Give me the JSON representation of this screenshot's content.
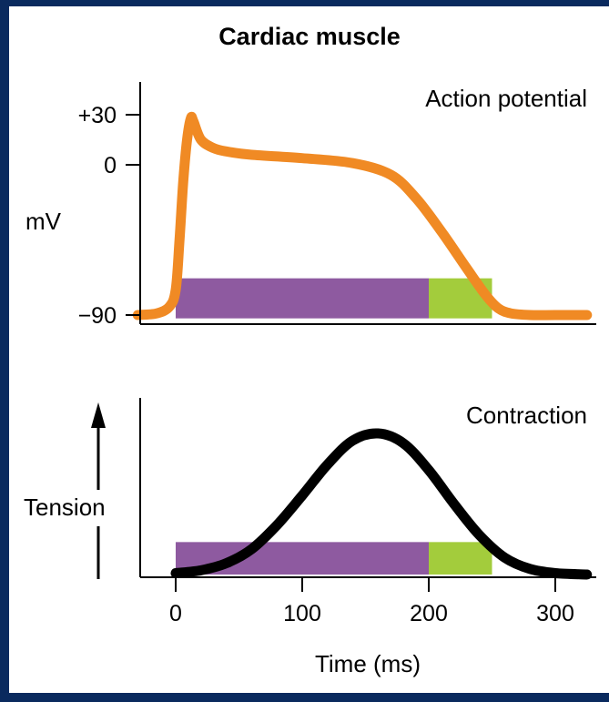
{
  "colors": {
    "frame": "#0a2a5e",
    "action_potential": "#f08a24",
    "contraction": "#000000",
    "refractory_absolute": "#8e5aa0",
    "refractory_relative": "#a3cc3c"
  },
  "chart_data": [
    {
      "type": "line",
      "title": "Cardiac muscle",
      "panel_label": "Action potential",
      "ylabel": "mV",
      "y_tick_labels": [
        "+30",
        "0",
        "−90"
      ],
      "y_ticks": [
        30,
        0,
        -90
      ],
      "xlim": [
        -30,
        330
      ],
      "ylim": [
        -100,
        45
      ],
      "series": [
        {
          "x": [
            -30,
            -15,
            -5,
            0,
            3,
            6,
            9,
            12,
            14,
            20,
            30,
            40,
            60,
            100,
            140,
            170,
            190,
            210,
            230,
            245,
            255,
            265,
            280,
            300,
            325
          ],
          "y": [
            -90,
            -89,
            -85,
            -75,
            -45,
            -10,
            15,
            28,
            26,
            15,
            10,
            8,
            6,
            4,
            1,
            -6,
            -20,
            -40,
            -62,
            -78,
            -86,
            -89,
            -90,
            -90,
            -90
          ]
        }
      ],
      "bars": [
        {
          "x_start": 0,
          "x_end": 200,
          "y_from": -92,
          "y_to": -68
        },
        {
          "x_start": 200,
          "x_end": 250,
          "y_from": -92,
          "y_to": -68
        }
      ]
    },
    {
      "type": "line",
      "panel_label": "Contraction",
      "ylabel": "Tension",
      "xlabel": "Time (ms)",
      "x_ticks": [
        0,
        100,
        200,
        300
      ],
      "x_tick_labels": [
        "0",
        "100",
        "200",
        "300"
      ],
      "xlim": [
        -30,
        330
      ],
      "ylim": [
        0,
        1.1
      ],
      "series": [
        {
          "x": [
            0,
            20,
            40,
            60,
            80,
            100,
            120,
            140,
            160,
            180,
            200,
            220,
            240,
            260,
            280,
            300,
            325
          ],
          "y": [
            0.01,
            0.03,
            0.08,
            0.18,
            0.35,
            0.56,
            0.78,
            0.95,
            1.0,
            0.93,
            0.74,
            0.5,
            0.28,
            0.12,
            0.04,
            0.01,
            0.0
          ]
        }
      ],
      "bars": [
        {
          "x_start": 0,
          "x_end": 200,
          "y_from": 0,
          "y_to": 0.23
        },
        {
          "x_start": 200,
          "x_end": 250,
          "y_from": 0,
          "y_to": 0.23
        }
      ]
    }
  ]
}
